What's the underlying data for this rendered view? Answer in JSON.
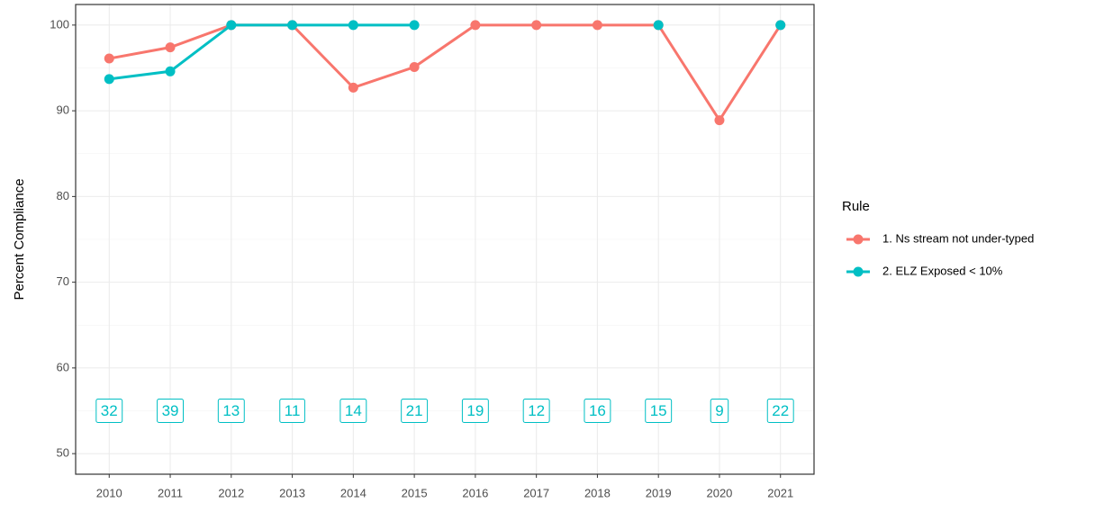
{
  "chart_data": {
    "type": "line",
    "y_label": "Percent Compliance",
    "x": [
      2010,
      2011,
      2012,
      2013,
      2014,
      2015,
      2016,
      2017,
      2018,
      2019,
      2020,
      2021
    ],
    "series": [
      {
        "name": "1. Ns stream not under-typed",
        "color": "#F8766D",
        "values": [
          96.1,
          97.4,
          100,
          100,
          92.7,
          95.1,
          100,
          100,
          100,
          100,
          88.9,
          100
        ]
      },
      {
        "name": "2. ELZ Exposed < 10%",
        "color": "#00BFC4",
        "values": [
          93.7,
          94.6,
          100,
          100,
          100,
          100,
          null,
          null,
          null,
          100,
          null,
          100
        ]
      }
    ],
    "counts": [
      "32",
      "39",
      "13",
      "11",
      "14",
      "21",
      "19",
      "12",
      "16",
      "15",
      "9",
      "22"
    ],
    "counts_y": 55,
    "counts_color": "#00BFC4",
    "legend_title": "Rule",
    "xlim": [
      2009.45,
      2021.55
    ],
    "xticks": [
      2010,
      2011,
      2012,
      2013,
      2014,
      2015,
      2016,
      2017,
      2018,
      2019,
      2020,
      2021
    ],
    "ylim": [
      47.6,
      102.4
    ],
    "yticks": [
      50,
      60,
      70,
      80,
      90,
      100
    ],
    "grid": true
  }
}
